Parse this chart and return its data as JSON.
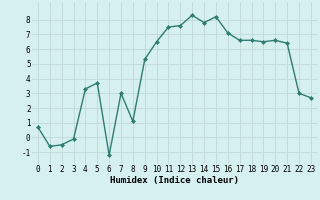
{
  "x": [
    0,
    1,
    2,
    3,
    4,
    5,
    6,
    7,
    8,
    9,
    10,
    11,
    12,
    13,
    14,
    15,
    16,
    17,
    18,
    19,
    20,
    21,
    22,
    23
  ],
  "y": [
    0.7,
    -0.6,
    -0.5,
    -0.1,
    3.3,
    3.7,
    -1.2,
    3.0,
    1.1,
    5.3,
    6.5,
    7.5,
    7.6,
    8.3,
    7.8,
    8.2,
    7.1,
    6.6,
    6.6,
    6.5,
    6.6,
    6.4,
    3.0,
    2.7
  ],
  "line_color": "#2e7d6e",
  "marker": "D",
  "marker_size": 2,
  "bg_color": "#d6f0f0",
  "grid_color": "#c0d8d8",
  "xlabel": "Humidex (Indice chaleur)",
  "xlim": [
    -0.5,
    23.5
  ],
  "ylim": [
    -1.8,
    9.2
  ],
  "yticks": [
    -1,
    0,
    1,
    2,
    3,
    4,
    5,
    6,
    7,
    8
  ],
  "xticks": [
    0,
    1,
    2,
    3,
    4,
    5,
    6,
    7,
    8,
    9,
    10,
    11,
    12,
    13,
    14,
    15,
    16,
    17,
    18,
    19,
    20,
    21,
    22,
    23
  ],
  "xlabel_fontsize": 6.5,
  "tick_fontsize": 5.5,
  "line_width": 1.0
}
